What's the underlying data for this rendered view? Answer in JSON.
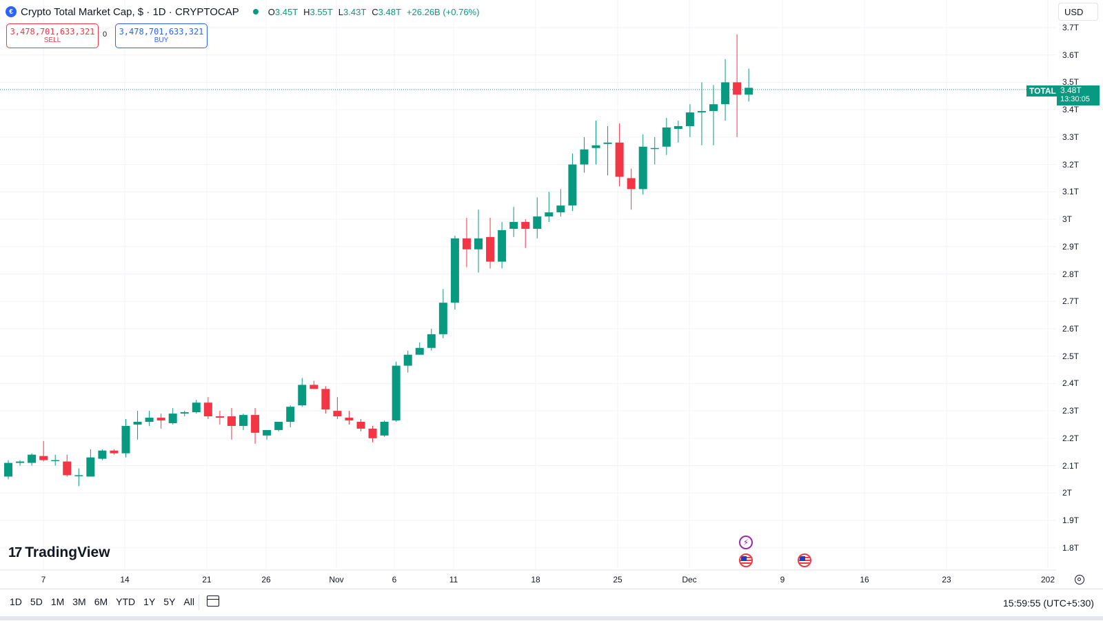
{
  "header": {
    "logo_icon": "crypto-cap-logo",
    "title": "Crypto Total Market Cap, $ · 1D · CRYPTOCAP",
    "status_color": "#089981",
    "ohlc": {
      "o_label": "O",
      "o": "3.45T",
      "h_label": "H",
      "h": "3.55T",
      "l_label": "L",
      "l": "3.43T",
      "c_label": "C",
      "c": "3.48T",
      "change": "+26.26B (+0.76%)"
    }
  },
  "trade": {
    "sell_price": "3,478,701,633,321",
    "sell_label": "SELL",
    "spread": "0",
    "buy_price": "3,478,701,633,321",
    "buy_label": "BUY"
  },
  "currency": "USD",
  "price_scale": [
    "3.7T",
    "3.6T",
    "3.5T",
    "3.4T",
    "3.3T",
    "3.2T",
    "3.1T",
    "3T",
    "2.9T",
    "2.8T",
    "2.7T",
    "2.6T",
    "2.5T",
    "2.4T",
    "2.3T",
    "2.2T",
    "2.1T",
    "2T",
    "1.9T",
    "1.8T"
  ],
  "time_scale": [
    "7",
    "14",
    "21",
    "26",
    "Nov",
    "6",
    "11",
    "18",
    "25",
    "Dec",
    "9",
    "16",
    "23",
    "202"
  ],
  "last_price": {
    "symbol": "TOTAL",
    "value": "3.48T",
    "countdown": "13:30:05"
  },
  "branding": "TradingView",
  "bottom_bar": {
    "ranges": [
      "1D",
      "5D",
      "1M",
      "3M",
      "6M",
      "YTD",
      "1Y",
      "5Y",
      "All"
    ],
    "clock": "15:59:55 (UTC+5:30)"
  },
  "colors": {
    "up": "#089981",
    "down": "#f23645",
    "grid": "#f0f3fa"
  },
  "chart_data": {
    "type": "candlestick",
    "title": "Crypto Total Market Cap, $ · 1D · CRYPTOCAP",
    "y_unit": "T",
    "ylim": [
      1.75,
      3.75
    ],
    "grid": true,
    "candles": [
      {
        "o": 2.06,
        "h": 2.12,
        "l": 2.05,
        "c": 2.11
      },
      {
        "o": 2.11,
        "h": 2.12,
        "l": 2.1,
        "c": 2.115
      },
      {
        "o": 2.11,
        "h": 2.145,
        "l": 2.1,
        "c": 2.14
      },
      {
        "o": 2.135,
        "h": 2.19,
        "l": 2.115,
        "c": 2.12
      },
      {
        "o": 2.12,
        "h": 2.14,
        "l": 2.1,
        "c": 2.12
      },
      {
        "o": 2.115,
        "h": 2.14,
        "l": 2.06,
        "c": 2.065
      },
      {
        "o": 2.065,
        "h": 2.09,
        "l": 2.025,
        "c": 2.065
      },
      {
        "o": 2.06,
        "h": 2.16,
        "l": 2.06,
        "c": 2.13
      },
      {
        "o": 2.125,
        "h": 2.16,
        "l": 2.12,
        "c": 2.155
      },
      {
        "o": 2.155,
        "h": 2.16,
        "l": 2.14,
        "c": 2.145
      },
      {
        "o": 2.145,
        "h": 2.27,
        "l": 2.13,
        "c": 2.245
      },
      {
        "o": 2.25,
        "h": 2.3,
        "l": 2.195,
        "c": 2.26
      },
      {
        "o": 2.26,
        "h": 2.3,
        "l": 2.245,
        "c": 2.275
      },
      {
        "o": 2.275,
        "h": 2.29,
        "l": 2.235,
        "c": 2.265
      },
      {
        "o": 2.255,
        "h": 2.31,
        "l": 2.25,
        "c": 2.29
      },
      {
        "o": 2.29,
        "h": 2.3,
        "l": 2.28,
        "c": 2.295
      },
      {
        "o": 2.295,
        "h": 2.34,
        "l": 2.29,
        "c": 2.33
      },
      {
        "o": 2.33,
        "h": 2.35,
        "l": 2.27,
        "c": 2.28
      },
      {
        "o": 2.28,
        "h": 2.3,
        "l": 2.25,
        "c": 2.275
      },
      {
        "o": 2.28,
        "h": 2.31,
        "l": 2.195,
        "c": 2.245
      },
      {
        "o": 2.245,
        "h": 2.29,
        "l": 2.23,
        "c": 2.285
      },
      {
        "o": 2.285,
        "h": 2.31,
        "l": 2.18,
        "c": 2.22
      },
      {
        "o": 2.21,
        "h": 2.23,
        "l": 2.195,
        "c": 2.23
      },
      {
        "o": 2.23,
        "h": 2.26,
        "l": 2.225,
        "c": 2.26
      },
      {
        "o": 2.26,
        "h": 2.32,
        "l": 2.24,
        "c": 2.315
      },
      {
        "o": 2.32,
        "h": 2.42,
        "l": 2.315,
        "c": 2.395
      },
      {
        "o": 2.395,
        "h": 2.41,
        "l": 2.38,
        "c": 2.38
      },
      {
        "o": 2.38,
        "h": 2.39,
        "l": 2.29,
        "c": 2.305
      },
      {
        "o": 2.3,
        "h": 2.35,
        "l": 2.27,
        "c": 2.28
      },
      {
        "o": 2.275,
        "h": 2.3,
        "l": 2.25,
        "c": 2.265
      },
      {
        "o": 2.26,
        "h": 2.27,
        "l": 2.225,
        "c": 2.235
      },
      {
        "o": 2.235,
        "h": 2.245,
        "l": 2.185,
        "c": 2.2
      },
      {
        "o": 2.21,
        "h": 2.265,
        "l": 2.205,
        "c": 2.26
      },
      {
        "o": 2.265,
        "h": 2.48,
        "l": 2.26,
        "c": 2.465
      },
      {
        "o": 2.465,
        "h": 2.52,
        "l": 2.44,
        "c": 2.505
      },
      {
        "o": 2.505,
        "h": 2.55,
        "l": 2.505,
        "c": 2.53
      },
      {
        "o": 2.53,
        "h": 2.6,
        "l": 2.52,
        "c": 2.58
      },
      {
        "o": 2.58,
        "h": 2.745,
        "l": 2.565,
        "c": 2.695
      },
      {
        "o": 2.695,
        "h": 2.94,
        "l": 2.67,
        "c": 2.93
      },
      {
        "o": 2.93,
        "h": 3.005,
        "l": 2.825,
        "c": 2.89
      },
      {
        "o": 2.89,
        "h": 3.035,
        "l": 2.805,
        "c": 2.93
      },
      {
        "o": 2.935,
        "h": 3.005,
        "l": 2.82,
        "c": 2.845
      },
      {
        "o": 2.845,
        "h": 2.99,
        "l": 2.82,
        "c": 2.96
      },
      {
        "o": 2.965,
        "h": 3.045,
        "l": 2.935,
        "c": 2.99
      },
      {
        "o": 2.99,
        "h": 3.0,
        "l": 2.895,
        "c": 2.965
      },
      {
        "o": 2.965,
        "h": 3.08,
        "l": 2.93,
        "c": 3.01
      },
      {
        "o": 3.01,
        "h": 3.1,
        "l": 2.99,
        "c": 3.025
      },
      {
        "o": 3.025,
        "h": 3.11,
        "l": 3.01,
        "c": 3.05
      },
      {
        "o": 3.05,
        "h": 3.24,
        "l": 3.03,
        "c": 3.2
      },
      {
        "o": 3.2,
        "h": 3.3,
        "l": 3.17,
        "c": 3.255
      },
      {
        "o": 3.26,
        "h": 3.36,
        "l": 3.2,
        "c": 3.27
      },
      {
        "o": 3.275,
        "h": 3.34,
        "l": 3.16,
        "c": 3.28
      },
      {
        "o": 3.28,
        "h": 3.35,
        "l": 3.12,
        "c": 3.155
      },
      {
        "o": 3.15,
        "h": 3.185,
        "l": 3.035,
        "c": 3.11
      },
      {
        "o": 3.11,
        "h": 3.31,
        "l": 3.09,
        "c": 3.265
      },
      {
        "o": 3.26,
        "h": 3.3,
        "l": 3.2,
        "c": 3.26
      },
      {
        "o": 3.265,
        "h": 3.37,
        "l": 3.235,
        "c": 3.335
      },
      {
        "o": 3.33,
        "h": 3.36,
        "l": 3.28,
        "c": 3.34
      },
      {
        "o": 3.34,
        "h": 3.42,
        "l": 3.3,
        "c": 3.39
      },
      {
        "o": 3.39,
        "h": 3.5,
        "l": 3.27,
        "c": 3.395
      },
      {
        "o": 3.395,
        "h": 3.49,
        "l": 3.27,
        "c": 3.42
      },
      {
        "o": 3.42,
        "h": 3.585,
        "l": 3.36,
        "c": 3.5
      },
      {
        "o": 3.5,
        "h": 3.675,
        "l": 3.3,
        "c": 3.455
      },
      {
        "o": 3.455,
        "h": 3.55,
        "l": 3.43,
        "c": 3.48
      }
    ]
  }
}
